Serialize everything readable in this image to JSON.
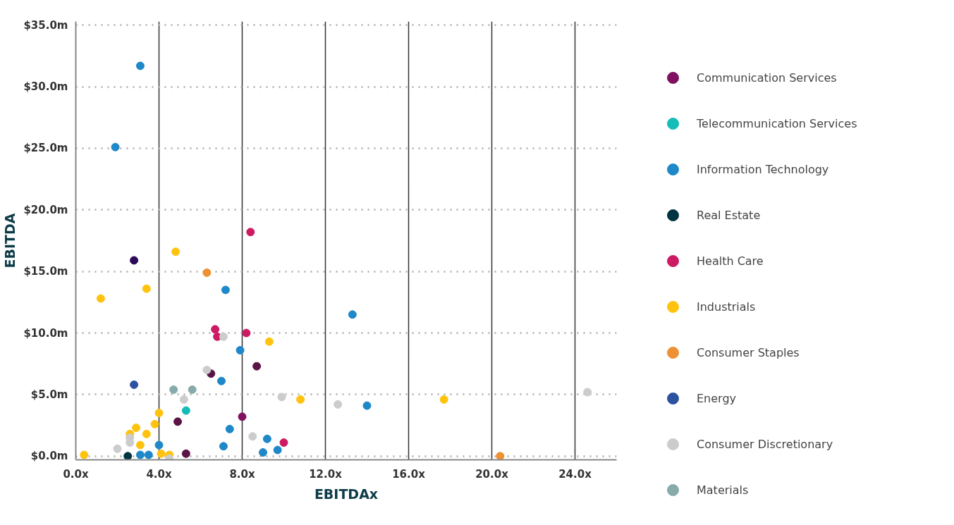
{
  "chart_data": {
    "type": "scatter",
    "xlabel": "EBITDAx",
    "ylabel": "EBITDA",
    "xlim": [
      0,
      26
    ],
    "ylim": [
      -0.3,
      35.3
    ],
    "xticks": [
      {
        "value": 0,
        "label": "0.0x"
      },
      {
        "value": 4,
        "label": "4.0x"
      },
      {
        "value": 8,
        "label": "8.0x"
      },
      {
        "value": 12,
        "label": "12.0x"
      },
      {
        "value": 16,
        "label": "16.0x"
      },
      {
        "value": 20,
        "label": "20.0x"
      },
      {
        "value": 24,
        "label": "24.0x"
      }
    ],
    "yticks": [
      {
        "value": 0,
        "label": "$0.0m"
      },
      {
        "value": 5,
        "label": "$5.0m"
      },
      {
        "value": 10,
        "label": "$10.0m"
      },
      {
        "value": 15,
        "label": "$15.0m"
      },
      {
        "value": 20,
        "label": "$20.0m"
      },
      {
        "value": 25,
        "label": "$25.0m"
      },
      {
        "value": 30,
        "label": "$30.0m"
      },
      {
        "value": 35,
        "label": "$35.0m"
      }
    ],
    "grid": true,
    "legend": "right",
    "marker": "circle",
    "series": [
      {
        "name": "Communication Services",
        "color": "#7f1160",
        "x": [
          8.0
        ],
        "values": [
          3.2
        ]
      },
      {
        "color": "#5a1446",
        "x": [
          8.7,
          6.5,
          4.9,
          5.3
        ],
        "values": [
          7.3,
          6.7,
          2.8,
          0.2
        ]
      },
      {
        "color": "#2b0a5a",
        "x": [
          2.8
        ],
        "values": [
          15.9
        ]
      },
      {
        "name": "Telecommunication Services",
        "color": "#14bdb8",
        "x": [
          5.3
        ],
        "values": [
          3.7
        ]
      },
      {
        "name": "Information Technology",
        "color": "#1e88c8",
        "x": [
          3.1,
          1.9,
          7.2,
          13.3,
          7.9,
          7.0,
          7.4,
          9.2,
          4.0,
          7.1,
          9.7,
          9.0,
          3.1,
          3.5,
          14.0
        ],
        "values": [
          31.7,
          25.1,
          13.5,
          11.5,
          8.6,
          6.1,
          2.2,
          1.4,
          0.9,
          0.8,
          0.5,
          0.3,
          0.1,
          0.1,
          4.1
        ]
      },
      {
        "name": "Real Estate",
        "color": "#003440",
        "x": [
          2.5
        ],
        "values": [
          0.0
        ]
      },
      {
        "name": "Health Care",
        "color": "#cc1a63",
        "x": [
          8.4,
          6.7,
          6.8,
          8.2,
          10.0
        ],
        "values": [
          18.2,
          10.3,
          9.7,
          10.0,
          1.1
        ]
      },
      {
        "name": "Industrials",
        "color": "#ffc30f",
        "x": [
          4.8,
          3.4,
          1.2,
          9.3,
          10.8,
          17.7,
          4.0,
          3.8,
          2.9,
          2.6,
          3.4,
          3.1,
          0.4,
          4.1,
          4.5
        ],
        "values": [
          16.6,
          13.6,
          12.8,
          9.3,
          4.6,
          4.6,
          3.5,
          2.6,
          2.3,
          1.8,
          1.8,
          0.9,
          0.1,
          0.2,
          0.1
        ]
      },
      {
        "name": "Consumer Staples",
        "color": "#ee9133",
        "x": [
          6.3,
          20.4
        ],
        "values": [
          14.9,
          0.0
        ]
      },
      {
        "name": "Energy",
        "color": "#2d52a0",
        "x": [
          2.8
        ],
        "values": [
          5.8
        ]
      },
      {
        "name": "Consumer Discretionary",
        "color": "#cccccc",
        "x": [
          7.1,
          6.3,
          5.2,
          9.9,
          12.6,
          24.6,
          8.5,
          2.6,
          2.6,
          2.0,
          4.5
        ],
        "values": [
          9.7,
          7.0,
          4.6,
          4.8,
          4.2,
          5.2,
          1.6,
          1.5,
          1.1,
          0.6,
          -0.2
        ]
      },
      {
        "name": "Materials",
        "color": "#87aaaa",
        "x": [
          4.7,
          5.6
        ],
        "values": [
          5.4,
          5.4
        ]
      }
    ]
  }
}
